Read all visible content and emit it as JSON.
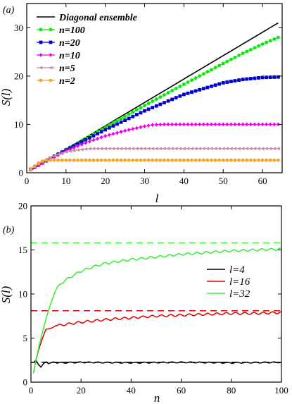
{
  "chart_data": [
    {
      "type": "line",
      "panel_label": "(a)",
      "xlabel": "l",
      "ylabel": "S(l)",
      "xlim": [
        0,
        65
      ],
      "ylim": [
        0,
        35
      ],
      "xticks": [
        "0",
        "10",
        "20",
        "30",
        "40",
        "50",
        "60"
      ],
      "yticks": [
        "0",
        "10",
        "20",
        "30"
      ],
      "legend_position": "top-left",
      "series": [
        {
          "name": "Diagonal ensemble",
          "color": "#000000",
          "marker": "none",
          "x": [
            1,
            64
          ],
          "y": [
            0.5,
            31.0
          ]
        },
        {
          "name": "n=100",
          "color": "#00ee00",
          "marker": "circle",
          "x": [
            1,
            5,
            10,
            20,
            30,
            40,
            50,
            55,
            60,
            64
          ],
          "y": [
            0.7,
            2.6,
            4.8,
            9.4,
            13.9,
            18.3,
            22.6,
            24.7,
            26.6,
            28.0
          ]
        },
        {
          "name": "n=20",
          "color": "#0000cc",
          "marker": "square",
          "x": [
            1,
            5,
            10,
            20,
            30,
            40,
            50,
            55,
            60,
            64
          ],
          "y": [
            0.7,
            2.5,
            4.7,
            8.9,
            12.8,
            16.2,
            18.6,
            19.3,
            19.7,
            19.8
          ]
        },
        {
          "name": "n=10",
          "color": "#ee00ee",
          "marker": "diamond",
          "x": [
            1,
            5,
            10,
            15,
            20,
            25,
            30,
            32,
            35,
            64
          ],
          "y": [
            0.7,
            2.4,
            4.5,
            6.2,
            7.6,
            8.7,
            9.6,
            9.9,
            10.0,
            10.0
          ]
        },
        {
          "name": "n=5",
          "color": "#c98b9a",
          "marker": "triangle-left",
          "x": [
            1,
            3,
            5,
            8,
            10,
            13,
            15,
            17,
            64
          ],
          "y": [
            0.7,
            1.8,
            2.8,
            3.8,
            4.3,
            4.7,
            4.9,
            5.0,
            5.0
          ]
        },
        {
          "name": "n=2",
          "color": "#f5a623",
          "marker": "circle",
          "x": [
            1,
            2,
            3,
            4,
            5,
            64
          ],
          "y": [
            0.7,
            1.4,
            2.0,
            2.4,
            2.6,
            2.6
          ]
        }
      ]
    },
    {
      "type": "line",
      "panel_label": "(b)",
      "xlabel": "n",
      "ylabel": "S(l)",
      "xlim": [
        0,
        100
      ],
      "ylim": [
        0,
        20
      ],
      "xticks": [
        "0",
        "20",
        "40",
        "60",
        "80",
        "100"
      ],
      "yticks": [
        "0",
        "5",
        "10",
        "15",
        "20"
      ],
      "legend_position": "right",
      "series": [
        {
          "name": "l=4",
          "color": "#000000",
          "x": [
            1,
            2,
            3,
            4,
            5,
            6,
            7,
            8,
            9,
            10,
            12,
            20,
            40,
            60,
            80,
            100
          ],
          "y": [
            2.2,
            2.5,
            2.0,
            1.7,
            2.1,
            2.3,
            2.1,
            2.2,
            2.3,
            2.2,
            2.2,
            2.25,
            2.2,
            2.25,
            2.2,
            2.25
          ]
        },
        {
          "name": "l=16",
          "color": "#dd0000",
          "x": [
            1,
            2,
            3,
            4,
            5,
            6,
            8,
            10,
            15,
            20,
            30,
            40,
            50,
            60,
            70,
            80,
            90,
            100
          ],
          "y": [
            1.0,
            2.5,
            3.6,
            4.5,
            5.3,
            6.0,
            6.1,
            6.4,
            6.6,
            6.8,
            7.1,
            7.3,
            7.5,
            7.6,
            7.7,
            7.8,
            7.8,
            7.9
          ]
        },
        {
          "name": "l=32",
          "color": "#33ee33",
          "x": [
            1,
            2,
            3,
            4,
            6,
            8,
            10,
            12,
            15,
            20,
            25,
            30,
            40,
            50,
            60,
            70,
            80,
            90,
            100
          ],
          "y": [
            1.0,
            2.5,
            3.8,
            5.0,
            7.2,
            9.0,
            10.5,
            11.2,
            11.8,
            12.6,
            13.1,
            13.5,
            13.9,
            14.2,
            14.5,
            14.7,
            14.9,
            15.0,
            15.1
          ]
        }
      ],
      "reference_lines": [
        {
          "color": "#dd0000",
          "style": "dashed",
          "y": 8.1
        },
        {
          "color": "#33ee33",
          "style": "dashed",
          "y": 15.8
        },
        {
          "color": "#000000",
          "style": "dashed",
          "y": 2.25
        }
      ]
    }
  ]
}
